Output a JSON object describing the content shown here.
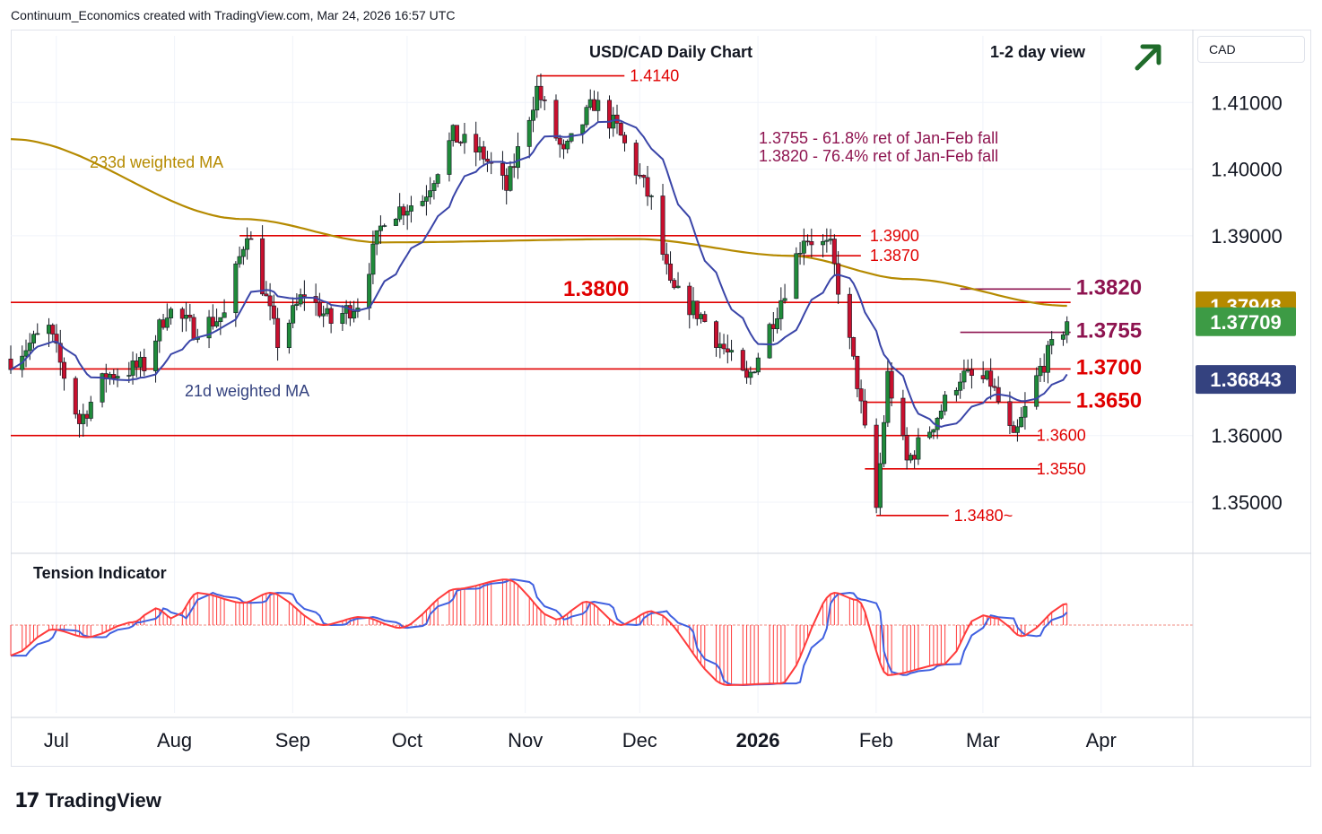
{
  "header": {
    "credit": "Continuum_Economics created with TradingView.com, Mar 24, 2026 16:57 UTC"
  },
  "currency_button": "CAD",
  "branding": {
    "logo_mark": "17",
    "logo_text": "TradingView"
  },
  "view_icon": "arrow-up-right-icon",
  "colors": {
    "bull": "#1f8a3a",
    "bear": "#c8102e",
    "sr_line": "#e00000",
    "fib_line": "#8e1450",
    "ma233": "#b58a00",
    "ma21": "#3a45a8",
    "tension_fast": "#ff3b3b",
    "tension_slow": "#4060e0",
    "last_price": "#3d9b45",
    "ma233_tag": "#b58a00",
    "ma21_tag": "#34427f",
    "view_arrow": "#1f6b2a"
  },
  "chart_data": [
    {
      "type": "candlestick",
      "title": "USD/CAD Daily Chart",
      "subtitle": "1-2 day view",
      "y_axis_ticks": [
        "1.41000",
        "1.40000",
        "1.39000",
        "1.36000",
        "1.35000"
      ],
      "ylim": [
        1.343,
        1.42
      ],
      "x_axis_ticks": [
        "Jul",
        "Aug",
        "Sep",
        "Oct",
        "Nov",
        "Dec",
        "2026",
        "Feb",
        "Mar",
        "Apr"
      ],
      "x_axis_tick_dates": [
        "2025-07-01",
        "2025-08-01",
        "2025-09-01",
        "2025-10-01",
        "2025-11-01",
        "2025-12-01",
        "2026-01-01",
        "2026-02-01",
        "2026-03-01",
        "2026-04-01"
      ],
      "date_range": [
        "2025-06-20",
        "2026-03-24"
      ],
      "close_anchors": [
        {
          "date": "2025-06-20",
          "close": 1.3715
        },
        {
          "date": "2025-06-30",
          "close": 1.376
        },
        {
          "date": "2025-07-08",
          "close": 1.362
        },
        {
          "date": "2025-07-15",
          "close": 1.369
        },
        {
          "date": "2025-07-25",
          "close": 1.3705
        },
        {
          "date": "2025-07-31",
          "close": 1.379
        },
        {
          "date": "2025-08-07",
          "close": 1.376
        },
        {
          "date": "2025-08-15",
          "close": 1.378
        },
        {
          "date": "2025-08-21",
          "close": 1.391
        },
        {
          "date": "2025-08-29",
          "close": 1.374
        },
        {
          "date": "2025-09-05",
          "close": 1.3815
        },
        {
          "date": "2025-09-12",
          "close": 1.377
        },
        {
          "date": "2025-09-19",
          "close": 1.38
        },
        {
          "date": "2025-09-26",
          "close": 1.393
        },
        {
          "date": "2025-10-06",
          "close": 1.3955
        },
        {
          "date": "2025-10-14",
          "close": 1.405
        },
        {
          "date": "2025-10-22",
          "close": 1.402
        },
        {
          "date": "2025-10-28",
          "close": 1.397
        },
        {
          "date": "2025-11-05",
          "close": 1.412
        },
        {
          "date": "2025-11-12",
          "close": 1.402
        },
        {
          "date": "2025-11-20",
          "close": 1.41
        },
        {
          "date": "2025-11-26",
          "close": 1.406
        },
        {
          "date": "2025-12-05",
          "close": 1.395
        },
        {
          "date": "2025-12-10",
          "close": 1.382
        },
        {
          "date": "2025-12-18",
          "close": 1.378
        },
        {
          "date": "2025-12-30",
          "close": 1.368
        },
        {
          "date": "2026-01-07",
          "close": 1.379
        },
        {
          "date": "2026-01-14",
          "close": 1.39
        },
        {
          "date": "2026-01-21",
          "close": 1.388
        },
        {
          "date": "2026-01-28",
          "close": 1.368
        },
        {
          "date": "2026-02-02",
          "close": 1.349
        },
        {
          "date": "2026-02-05",
          "close": 1.369
        },
        {
          "date": "2026-02-10",
          "close": 1.356
        },
        {
          "date": "2026-02-16",
          "close": 1.361
        },
        {
          "date": "2026-02-24",
          "close": 1.369
        },
        {
          "date": "2026-03-04",
          "close": 1.368
        },
        {
          "date": "2026-03-10",
          "close": 1.359
        },
        {
          "date": "2026-03-17",
          "close": 1.37
        },
        {
          "date": "2026-03-24",
          "close": 1.3771
        }
      ],
      "indicators": [
        {
          "name": "233d weighted MA",
          "last_value": "1.37948",
          "color": "#b58a00"
        },
        {
          "name": "21d weighted MA",
          "last_value": "1.36843",
          "color": "#3a45a8"
        }
      ],
      "last_price": "1.37709",
      "levels": [
        {
          "value": 1.414,
          "label": "1.4140",
          "start": "2025-11-05",
          "end": "2025-11-27"
        },
        {
          "value": 1.39,
          "label": "1.3900",
          "start": "2025-08-19",
          "end": "2026-01-28"
        },
        {
          "value": 1.387,
          "label": "1.3870",
          "start": "2026-01-07",
          "end": "2026-01-28"
        },
        {
          "value": 1.38,
          "label": "1.3800",
          "start": "2025-06-20",
          "end": "2026-03-24"
        },
        {
          "value": 1.37,
          "label": "1.3700",
          "start": "2025-06-20",
          "end": "2026-03-24"
        },
        {
          "value": 1.365,
          "label": "1.3650",
          "start": "2026-01-30",
          "end": "2026-03-24"
        },
        {
          "value": 1.36,
          "label": "1.3600",
          "start": "2025-06-20",
          "end": "2026-03-16"
        },
        {
          "value": 1.355,
          "label": "1.3550",
          "start": "2026-01-30",
          "end": "2026-03-16"
        },
        {
          "value": 1.348,
          "label": "1.3480~",
          "start": "2026-02-02",
          "end": "2026-02-20"
        }
      ],
      "fib_levels": [
        {
          "value": 1.382,
          "label": "1.3820",
          "start": "2026-02-24",
          "end": "2026-03-24"
        },
        {
          "value": 1.3755,
          "label": "1.3755",
          "start": "2026-02-24",
          "end": "2026-03-24"
        }
      ],
      "annotations": [
        "1.3755 - 61.8% ret of Jan-Feb fall",
        "1.3820 - 76.4% ret of Jan-Feb fall"
      ]
    },
    {
      "type": "histogram",
      "title": "Tension Indicator",
      "anchors": [
        {
          "date": "2025-06-20",
          "value": -0.55
        },
        {
          "date": "2025-07-01",
          "value": -0.08
        },
        {
          "date": "2025-07-10",
          "value": -0.22
        },
        {
          "date": "2025-07-22",
          "value": 0.05
        },
        {
          "date": "2025-07-28",
          "value": 0.3
        },
        {
          "date": "2025-08-02",
          "value": 0.1
        },
        {
          "date": "2025-08-08",
          "value": 0.58
        },
        {
          "date": "2025-08-20",
          "value": 0.4
        },
        {
          "date": "2025-08-27",
          "value": 0.58
        },
        {
          "date": "2025-09-10",
          "value": 0.0
        },
        {
          "date": "2025-09-20",
          "value": 0.15
        },
        {
          "date": "2025-09-30",
          "value": -0.05
        },
        {
          "date": "2025-10-15",
          "value": 0.65
        },
        {
          "date": "2025-10-28",
          "value": 0.82
        },
        {
          "date": "2025-11-10",
          "value": 0.1
        },
        {
          "date": "2025-11-18",
          "value": 0.42
        },
        {
          "date": "2025-11-27",
          "value": 0.0
        },
        {
          "date": "2025-12-05",
          "value": 0.25
        },
        {
          "date": "2025-12-25",
          "value": -1.08
        },
        {
          "date": "2026-01-08",
          "value": -1.05
        },
        {
          "date": "2026-01-22",
          "value": 0.58
        },
        {
          "date": "2026-01-28",
          "value": 0.45
        },
        {
          "date": "2026-02-05",
          "value": -0.9
        },
        {
          "date": "2026-02-20",
          "value": -0.7
        },
        {
          "date": "2026-03-01",
          "value": 0.18
        },
        {
          "date": "2026-03-06",
          "value": 0.12
        },
        {
          "date": "2026-03-12",
          "value": -0.2
        },
        {
          "date": "2026-03-24",
          "value": 0.38
        }
      ]
    }
  ]
}
